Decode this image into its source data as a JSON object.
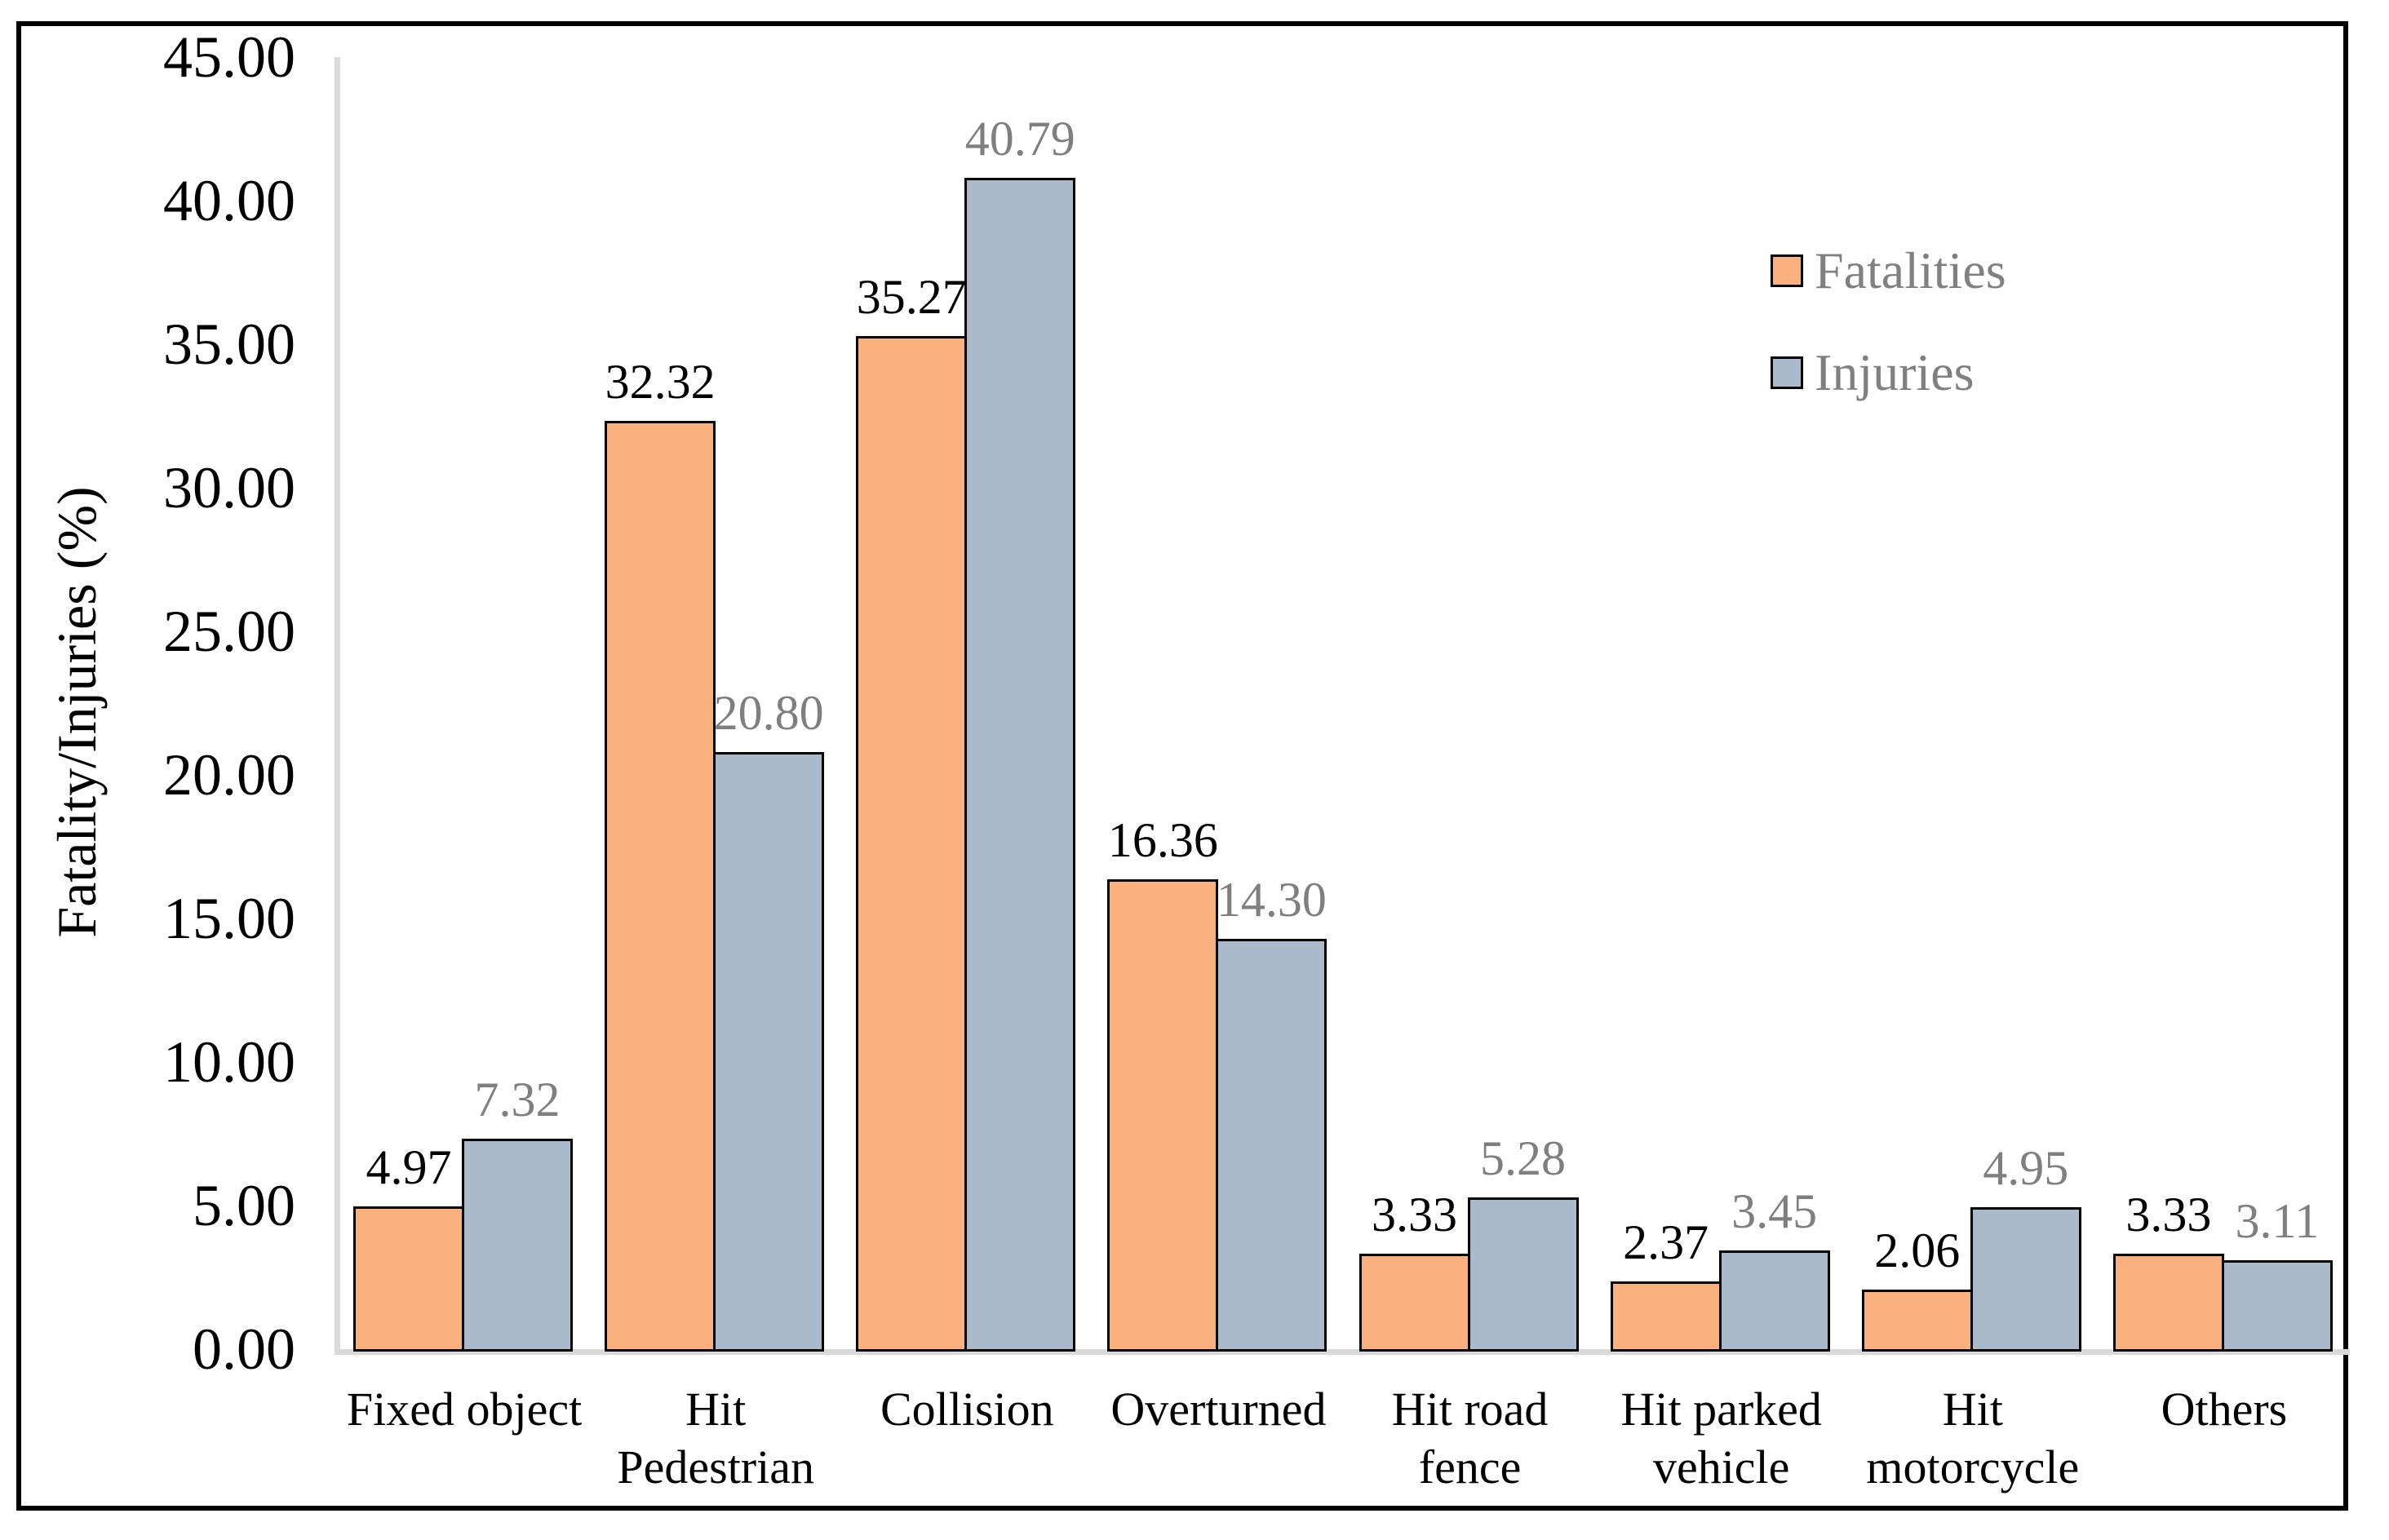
{
  "figure": {
    "background": "#ffffff",
    "border_color": "#000000"
  },
  "chart_data": {
    "type": "bar",
    "title": "",
    "ylabel": "Fatality/Injuries (%)",
    "xlabel": "",
    "ylim": [
      0,
      45
    ],
    "ytick_step": 5,
    "ytick_labels": [
      "0.00",
      "5.00",
      "10.00",
      "15.00",
      "20.00",
      "25.00",
      "30.00",
      "35.00",
      "40.00",
      "45.00"
    ],
    "grid": false,
    "legend_position": "upper right",
    "value_label_format": "0.00",
    "categories": [
      "Fixed object",
      "Hit Pedestrian",
      "Collision",
      "Overturned",
      "Hit road fence",
      "Hit parked vehicle",
      "Hit motorcycle",
      "Others"
    ],
    "category_label_lines": [
      [
        "Fixed object"
      ],
      [
        "Hit",
        "Pedestrian"
      ],
      [
        "Collision"
      ],
      [
        "Overturned"
      ],
      [
        "Hit road",
        "fence"
      ],
      [
        "Hit parked",
        "vehicle"
      ],
      [
        "Hit",
        "motorcycle"
      ],
      [
        "Others"
      ]
    ],
    "series": [
      {
        "name": "Fatalities",
        "color": "#FBB17E",
        "edge_color": "#000000",
        "label_color": "#000000",
        "values": [
          4.97,
          32.32,
          35.27,
          16.36,
          3.33,
          2.37,
          2.06,
          3.33
        ]
      },
      {
        "name": "Injuries",
        "color": "#A9BACB",
        "edge_color": "#000000",
        "label_color": "#7F7F7F",
        "values": [
          7.32,
          20.8,
          40.79,
          14.3,
          5.28,
          3.45,
          4.95,
          3.11
        ]
      }
    ],
    "axis_line_color": "#D9D9D9"
  },
  "legend": {
    "items": [
      {
        "label": "Fatalities",
        "color": "#FBB17E"
      },
      {
        "label": "Injuries",
        "color": "#A9BACB"
      }
    ]
  }
}
